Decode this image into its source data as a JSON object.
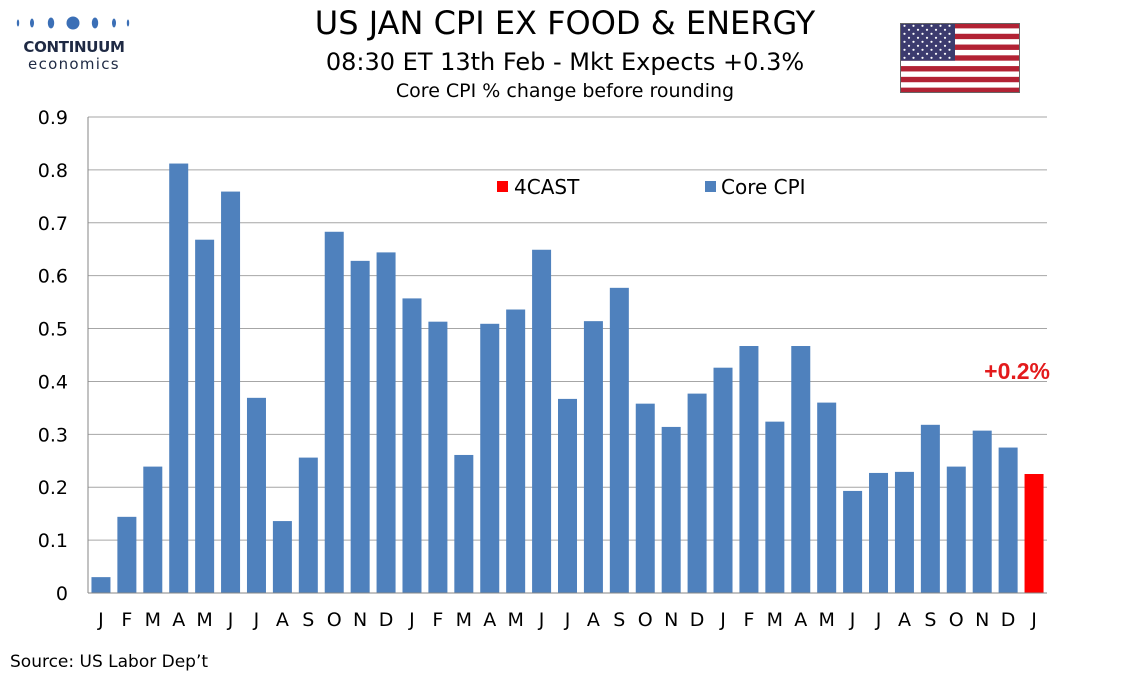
{
  "logo": {
    "line1": "CONTINUUM",
    "line2": "economics"
  },
  "header": {
    "title": "US JAN CPI EX FOOD & ENERGY",
    "subtitle": "08:30 ET 13th Feb - Mkt Expects +0.3%",
    "note": "Core CPI % change before rounding"
  },
  "flag": {
    "icon": "us-flag-icon"
  },
  "colors": {
    "core": "#4f81bd",
    "forecast": "#ff0000",
    "grid": "#a6a6a6",
    "annotation": "#e31a1c"
  },
  "chart_data": {
    "type": "bar",
    "categories": [
      "J",
      "F",
      "M",
      "A",
      "M",
      "J",
      "J",
      "A",
      "S",
      "O",
      "N",
      "D",
      "J",
      "F",
      "M",
      "A",
      "M",
      "J",
      "J",
      "A",
      "S",
      "O",
      "N",
      "D",
      "J",
      "F",
      "M",
      "A",
      "M",
      "J",
      "J",
      "A",
      "S",
      "O",
      "N",
      "D",
      "J"
    ],
    "series": [
      {
        "name": "Core CPI",
        "color": "#4f81bd",
        "values": [
          0.03,
          0.144,
          0.239,
          0.812,
          0.668,
          0.759,
          0.369,
          0.136,
          0.256,
          0.683,
          0.628,
          0.644,
          0.557,
          0.513,
          0.261,
          0.509,
          0.536,
          0.649,
          0.367,
          0.514,
          0.577,
          0.358,
          0.314,
          0.377,
          0.426,
          0.467,
          0.324,
          0.467,
          0.36,
          0.193,
          0.227,
          0.229,
          0.318,
          0.239,
          0.307,
          0.275,
          null
        ]
      },
      {
        "name": "4CAST",
        "color": "#ff0000",
        "values": [
          null,
          null,
          null,
          null,
          null,
          null,
          null,
          null,
          null,
          null,
          null,
          null,
          null,
          null,
          null,
          null,
          null,
          null,
          null,
          null,
          null,
          null,
          null,
          null,
          null,
          null,
          null,
          null,
          null,
          null,
          null,
          null,
          null,
          null,
          null,
          null,
          0.225
        ]
      }
    ],
    "yticks": [
      "0",
      "0.1",
      "0.2",
      "0.3",
      "0.4",
      "0.5",
      "0.6",
      "0.7",
      "0.8",
      "0.9"
    ],
    "ylim": [
      0,
      0.9
    ],
    "grid": true,
    "legend": {
      "placement": "top-center",
      "items": [
        "4CAST",
        "Core CPI"
      ]
    },
    "annotation": "+0.2%"
  },
  "source": "Source: US Labor Dep’t"
}
